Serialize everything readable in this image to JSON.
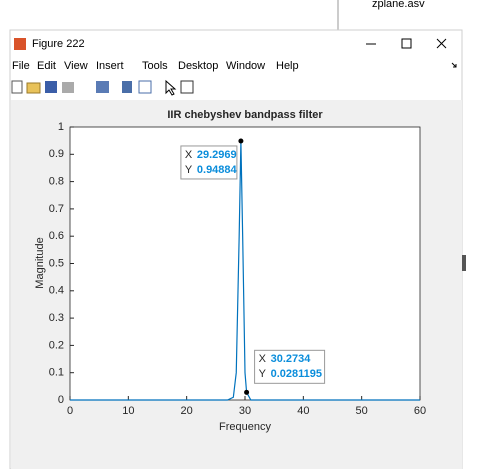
{
  "window": {
    "title": "Figure 222",
    "background_file": "zplane.asv",
    "menu": [
      "File",
      "Edit",
      "View",
      "Insert",
      "Tools",
      "Desktop",
      "Window",
      "Help"
    ]
  },
  "chart_data": {
    "type": "line",
    "title": "IIR chebyshev bandpass filter",
    "x_label": "Frequency",
    "y_label": "Magnitude",
    "x": [
      0,
      27,
      28,
      28.5,
      29,
      29.2969,
      29.6,
      30,
      30.2734,
      31,
      60
    ],
    "series": [
      {
        "name": "Magnitude",
        "color": "#0072bd",
        "values": [
          0,
          0,
          0.01,
          0.1,
          0.6,
          0.94884,
          0.6,
          0.1,
          0.0281195,
          0,
          0
        ]
      }
    ],
    "xlim": [
      0,
      60
    ],
    "xticks": [
      0,
      10,
      20,
      30,
      40,
      50,
      60
    ],
    "ylim": [
      0,
      1
    ],
    "yticks": [
      0,
      0.1,
      0.2,
      0.3,
      0.4,
      0.5,
      0.6,
      0.7,
      0.8,
      0.9,
      1
    ],
    "grid": false,
    "datatip_keys": [
      "X",
      "Y"
    ],
    "datatips": [
      {
        "x": 29.2969,
        "y": 0.94884
      },
      {
        "x": 30.2734,
        "y": 0.0281195
      }
    ]
  }
}
